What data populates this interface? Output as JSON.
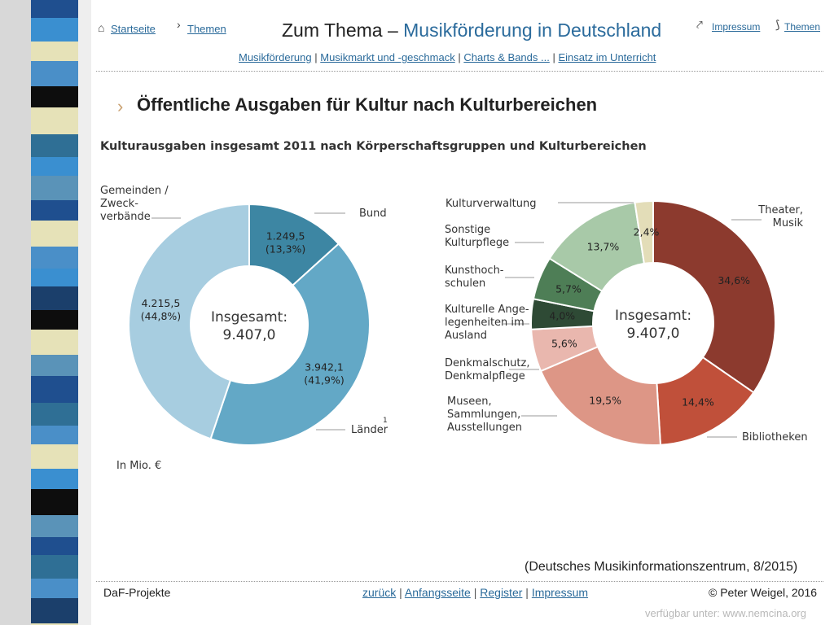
{
  "header": {
    "home_link": "Startseite",
    "themes_link_left": "Themen",
    "title_prefix": "Zum Thema – ",
    "title_accent": "Musikförderung in Deutschland",
    "impressum_link": "Impressum",
    "themes_link_right": "Themen",
    "subnav": [
      "Musikförderung",
      "Musikmarkt und -geschmack",
      "Charts & Bands ...",
      "Einsatz im Unterricht"
    ],
    "separator": "|"
  },
  "section_title": "Öffentliche Ausgaben für Kultur nach Kulturbereichen",
  "colors": {
    "strip_palette": [
      "#1f4f8f",
      "#4a8fc8",
      "#0d0d0d",
      "#e6e2b8",
      "#2f6f95",
      "#3a8fd0",
      "#5a93b8",
      "#1b3f6b"
    ],
    "chart1": [
      "#3d86a3",
      "#63a8c6",
      "#a7cde0"
    ],
    "chart2": [
      "#8c3a2e",
      "#c0503a",
      "#dd9686",
      "#e9b7ae",
      "#2e4a35",
      "#4e7e56",
      "#a8c9a8",
      "#e3ddb8"
    ]
  },
  "chart_data": [
    {
      "type": "pie",
      "variant": "donut",
      "title": "Kulturausgaben insgesamt 2011 nach Körperschaftsgruppen und Kulturbereichen",
      "center_label": "Insgesamt:",
      "center_value": "9.407,0",
      "unit_note": "In Mio. €",
      "slices": [
        {
          "label": "Bund",
          "value": 1249.5,
          "value_label": "1.249,5",
          "percent_label": "(13,3%)"
        },
        {
          "label": "Länder",
          "footnote": "1",
          "value": 3942.1,
          "value_label": "3.942,1",
          "percent_label": "(41,9%)"
        },
        {
          "label": "Gemeinden / Zweck- verbände",
          "value": 4215.5,
          "value_label": "4.215,5",
          "percent_label": "(44,8%)"
        }
      ]
    },
    {
      "type": "pie",
      "variant": "donut",
      "center_label": "Insgesamt:",
      "center_value": "9.407,0",
      "slices": [
        {
          "label": "Theater, Musik",
          "value": 34.6,
          "percent_label": "34,6%"
        },
        {
          "label": "Bibliotheken",
          "value": 14.4,
          "percent_label": "14,4%"
        },
        {
          "label": "Museen, Sammlungen, Ausstellungen",
          "value": 19.5,
          "percent_label": "19,5%"
        },
        {
          "label": "Denkmalschutz, Denkmalpflege",
          "value": 5.6,
          "percent_label": "5,6%"
        },
        {
          "label": "Kulturelle Ange- legenheiten im Ausland",
          "value": 4.0,
          "percent_label": "4,0%"
        },
        {
          "label": "Kunsthoch- schulen",
          "value": 5.7,
          "percent_label": "5,7%"
        },
        {
          "label": "Sonstige Kulturpflege",
          "value": 13.7,
          "percent_label": "13,7%"
        },
        {
          "label": "Kulturverwaltung",
          "value": 2.4,
          "percent_label": "2,4%"
        }
      ]
    }
  ],
  "source_note": "(Deutsches Musikinformationszentrum, 8/2015)",
  "footer": {
    "left": "DaF-Projekte",
    "nav": [
      "zurück",
      "Anfangsseite",
      "Register",
      "Impressum"
    ],
    "copyright": "© Peter Weigel, 2016",
    "availability": "verfügbar unter: www.nemcina.org"
  }
}
